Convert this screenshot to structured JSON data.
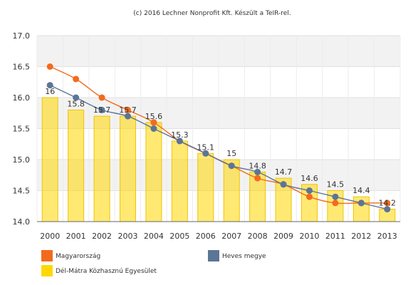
{
  "credit": "(c) 2016 Lechner Nonprofit Kft. Készült a TeIR-rel.",
  "chart_data": {
    "type": "bar+line",
    "categories": [
      "2000",
      "2001",
      "2002",
      "2003",
      "2004",
      "2005",
      "2006",
      "2007",
      "2008",
      "2009",
      "2010",
      "2011",
      "2012",
      "2013"
    ],
    "ylim": [
      14.0,
      17.0
    ],
    "yticks": [
      "14.0",
      "14.5",
      "15.0",
      "15.5",
      "16.0",
      "16.5",
      "17.0"
    ],
    "grid": true,
    "legend_position": "bottom",
    "series": [
      {
        "name": "Dél-Mátra Közhasznú Egyesület",
        "kind": "bar",
        "color": "#ffd700",
        "values": [
          16,
          15.8,
          15.7,
          15.7,
          15.6,
          15.3,
          15.1,
          15,
          14.8,
          14.7,
          14.6,
          14.5,
          14.4,
          14.2
        ],
        "labels": [
          "16",
          "15.8",
          "15.7",
          "15.7",
          "15.6",
          "15.3",
          "15.1",
          "15",
          "14.8",
          "14.7",
          "14.6",
          "14.5",
          "14.4",
          "14.2"
        ]
      },
      {
        "name": "Magyarország",
        "kind": "line",
        "color": "#f26b1d",
        "values": [
          16.5,
          16.3,
          16.0,
          15.8,
          15.6,
          15.3,
          15.1,
          14.9,
          14.7,
          14.6,
          14.4,
          14.3,
          14.3,
          14.3
        ]
      },
      {
        "name": "Heves megye",
        "kind": "line",
        "color": "#5b7596",
        "values": [
          16.2,
          16.0,
          15.8,
          15.7,
          15.5,
          15.3,
          15.1,
          14.9,
          14.8,
          14.6,
          14.5,
          14.4,
          14.3,
          14.2
        ]
      }
    ]
  }
}
